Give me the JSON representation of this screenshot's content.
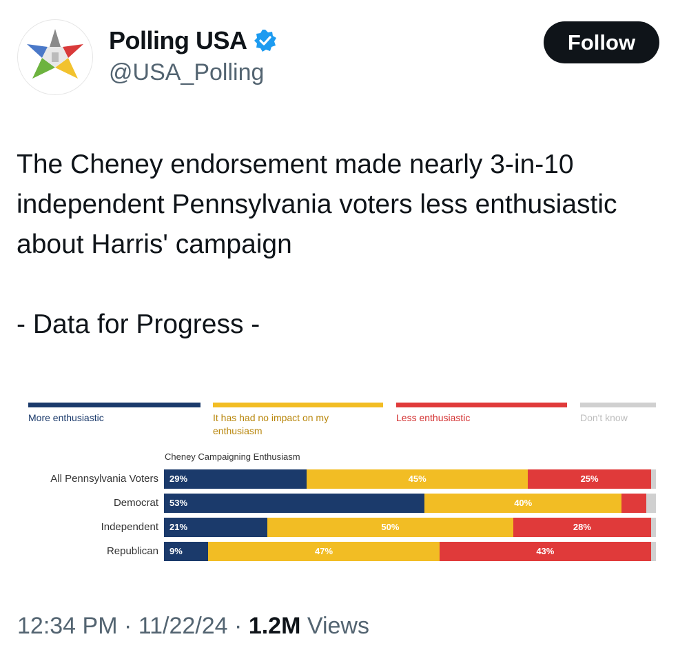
{
  "header": {
    "display_name": "Polling USA",
    "handle": "@USA_Polling",
    "follow_label": "Follow",
    "verified_color": "#1d9bf0"
  },
  "tweet": {
    "text": "The Cheney endorsement made nearly 3-in-10 independent Pennsylvania voters less enthusiastic about Harris' campaign",
    "signature": "- Data for Progress -"
  },
  "footer": {
    "time": "12:34 PM",
    "date": "11/22/24",
    "views_count": "1.2M",
    "views_label": "Views"
  },
  "chart_data": {
    "type": "bar",
    "orientation": "horizontal-stacked",
    "title": "Cheney Campaigning Enthusiasm",
    "categories": [
      "All Pennsylvania Voters",
      "Democrat",
      "Independent",
      "Republican"
    ],
    "legend_position": "top",
    "series": [
      {
        "name": "More enthusiastic",
        "color": "#1b3a6b",
        "label_color": "#ffffff",
        "values": [
          29,
          53,
          21,
          9
        ]
      },
      {
        "name": "It has had no impact on my enthusiasm",
        "color": "#f2bd24",
        "label_color": "#ffffff",
        "values": [
          45,
          40,
          50,
          47
        ]
      },
      {
        "name": "Less enthusiastic",
        "color": "#e03a3a",
        "label_color": "#ffffff",
        "values": [
          25,
          5,
          28,
          43
        ]
      },
      {
        "name": "Don't know",
        "color": "#d0d0d0",
        "label_color": "#ffffff",
        "values": [
          1,
          2,
          1,
          1
        ]
      }
    ],
    "data_labels": [
      [
        "29%",
        "45%",
        "25%",
        ""
      ],
      [
        "53%",
        "40%",
        "",
        ""
      ],
      [
        "21%",
        "50%",
        "28%",
        ""
      ],
      [
        "9%",
        "47%",
        "43%",
        ""
      ]
    ]
  }
}
